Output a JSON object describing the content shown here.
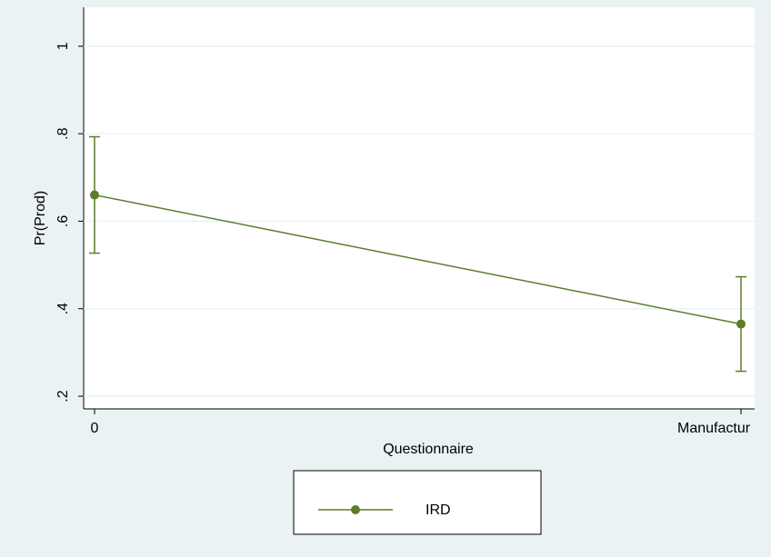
{
  "chart_data": {
    "type": "line",
    "x_label": "Questionnaire",
    "y_label": "Pr(Prod)",
    "categories": [
      "0",
      "Manufactur"
    ],
    "series": [
      {
        "name": "IRD",
        "color": "#5b7d2a",
        "values": [
          0.66,
          0.365
        ],
        "errors": [
          0.133,
          0.108
        ]
      }
    ],
    "ylim": [
      0.171,
      1.089
    ],
    "yticks": [
      {
        "value": 0.2,
        "label": ".2"
      },
      {
        "value": 0.4,
        "label": ".4"
      },
      {
        "value": 0.6,
        "label": ".6"
      },
      {
        "value": 0.8,
        "label": ".8"
      },
      1
    ],
    "grid": true,
    "legend": "bottom"
  }
}
